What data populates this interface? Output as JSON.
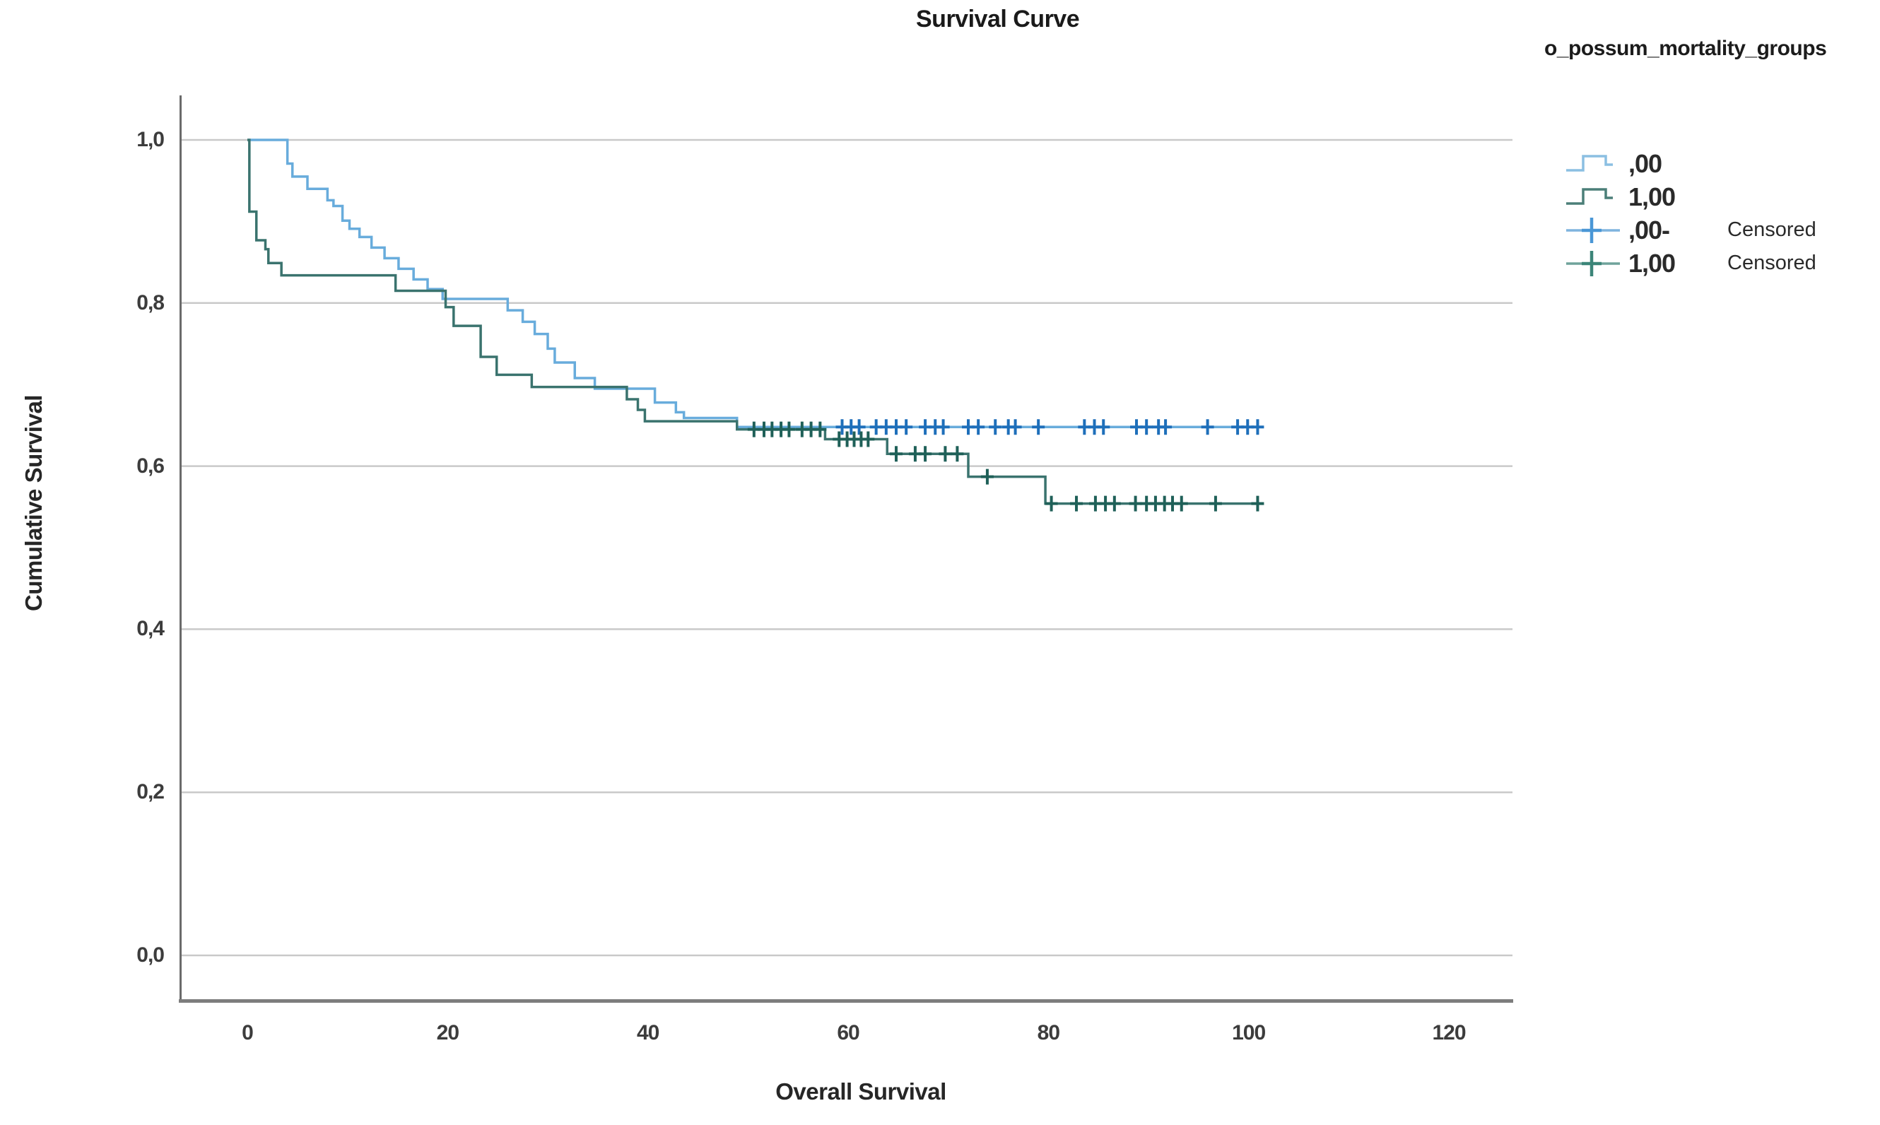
{
  "title": "Survival Curve",
  "x_axis": {
    "title": "Overall Survival",
    "ticks": [
      "0",
      "20",
      "40",
      "60",
      "80",
      "100",
      "120"
    ],
    "tick_values": [
      0,
      20,
      40,
      60,
      80,
      100,
      120
    ]
  },
  "y_axis": {
    "title": "Cumulative Survival",
    "ticks": [
      "1,0",
      "0,8",
      "0,6",
      "0,4",
      "0,2",
      "0,0"
    ],
    "tick_values": [
      1.0,
      0.8,
      0.6,
      0.4,
      0.2,
      0.0
    ]
  },
  "legend": {
    "title": "o_possum_mortality_groups",
    "entries": [
      {
        "label": ",00",
        "kind": "step-line",
        "color": "#8bbfe2"
      },
      {
        "label": "1,00",
        "kind": "step-line",
        "color": "#4b7f78"
      },
      {
        "label": ",00-",
        "censored_label": "Censored",
        "kind": "plus-line",
        "color": "#4a97d6"
      },
      {
        "label": "1,00",
        "censored_label": "Censored",
        "kind": "plus-line",
        "color": "#3c8578"
      }
    ]
  },
  "colors": {
    "group0_line": "#68acdc",
    "group0_censor": "#1e6fba",
    "group1_line": "#3a736e",
    "group1_censor": "#1f6058",
    "gridline": "#c9c9c9",
    "y_axis_line": "#6a6a6a",
    "x_axis_line": "#7d7d7d"
  },
  "chart_data": {
    "type": "line",
    "subtype": "kaplan-meier-step",
    "title": "Survival Curve",
    "xlabel": "Overall Survival",
    "ylabel": "Cumulative Survival",
    "xlim": [
      -7,
      127
    ],
    "ylim": [
      -0.06,
      1.06
    ],
    "grid": "horizontal",
    "legend_position": "top-right",
    "series": [
      {
        "name": ",00",
        "group": "0",
        "color": "#68acdc",
        "censor_color": "#1e6fba",
        "start": [
          0,
          1.0
        ],
        "end_x": 101.5,
        "steps": [
          [
            4,
            0.971
          ],
          [
            4.5,
            0.955
          ],
          [
            6,
            0.94
          ],
          [
            8,
            0.926
          ],
          [
            8.6,
            0.919
          ],
          [
            9.5,
            0.901
          ],
          [
            10.2,
            0.891
          ],
          [
            11.2,
            0.881
          ],
          [
            12.4,
            0.868
          ],
          [
            13.7,
            0.855
          ],
          [
            15.1,
            0.842
          ],
          [
            16.6,
            0.829
          ],
          [
            18,
            0.817
          ],
          [
            19.5,
            0.805
          ],
          [
            26,
            0.791
          ],
          [
            27.5,
            0.777
          ],
          [
            28.7,
            0.762
          ],
          [
            30,
            0.744
          ],
          [
            30.7,
            0.727
          ],
          [
            32.7,
            0.708
          ],
          [
            34.7,
            0.695
          ],
          [
            40.7,
            0.678
          ],
          [
            42.8,
            0.666
          ],
          [
            43.6,
            0.659
          ],
          [
            48.9,
            0.648
          ]
        ],
        "censored": [
          [
            59.4,
            0.648
          ],
          [
            60.3,
            0.648
          ],
          [
            61.1,
            0.648
          ],
          [
            62.8,
            0.648
          ],
          [
            63.8,
            0.648
          ],
          [
            64.8,
            0.648
          ],
          [
            65.8,
            0.648
          ],
          [
            67.7,
            0.648
          ],
          [
            68.7,
            0.648
          ],
          [
            69.5,
            0.648
          ],
          [
            72,
            0.648
          ],
          [
            73,
            0.648
          ],
          [
            74.7,
            0.648
          ],
          [
            76,
            0.648
          ],
          [
            76.7,
            0.648
          ],
          [
            79,
            0.648
          ],
          [
            83.6,
            0.648
          ],
          [
            84.6,
            0.648
          ],
          [
            85.5,
            0.648
          ],
          [
            88.8,
            0.648
          ],
          [
            89.8,
            0.648
          ],
          [
            91,
            0.648
          ],
          [
            91.7,
            0.648
          ],
          [
            95.9,
            0.648
          ],
          [
            98.9,
            0.648
          ],
          [
            99.9,
            0.648
          ],
          [
            100.9,
            0.648
          ]
        ]
      },
      {
        "name": "1,00",
        "group": "1",
        "color": "#3a736e",
        "censor_color": "#1f6058",
        "start": [
          0,
          1.0
        ],
        "end_x": 101.5,
        "steps": [
          [
            0.2,
            0.912
          ],
          [
            0.9,
            0.877
          ],
          [
            1.8,
            0.866
          ],
          [
            2.1,
            0.849
          ],
          [
            3.4,
            0.834
          ],
          [
            14.8,
            0.815
          ],
          [
            19.8,
            0.795
          ],
          [
            20.6,
            0.772
          ],
          [
            23.3,
            0.734
          ],
          [
            24.9,
            0.712
          ],
          [
            28.4,
            0.697
          ],
          [
            37.9,
            0.682
          ],
          [
            39,
            0.669
          ],
          [
            39.7,
            0.655
          ],
          [
            48.9,
            0.645
          ],
          [
            57.7,
            0.633
          ],
          [
            63.9,
            0.615
          ],
          [
            72,
            0.587
          ],
          [
            79.7,
            0.554
          ]
        ],
        "censored": [
          [
            50.6,
            0.645
          ],
          [
            51.6,
            0.645
          ],
          [
            52.4,
            0.645
          ],
          [
            53.3,
            0.645
          ],
          [
            54.1,
            0.645
          ],
          [
            55.4,
            0.645
          ],
          [
            56.3,
            0.645
          ],
          [
            57.2,
            0.645
          ],
          [
            59.1,
            0.633
          ],
          [
            59.9,
            0.633
          ],
          [
            60.6,
            0.633
          ],
          [
            61.3,
            0.633
          ],
          [
            62.0,
            0.633
          ],
          [
            64.8,
            0.615
          ],
          [
            66.7,
            0.615
          ],
          [
            67.7,
            0.615
          ],
          [
            69.7,
            0.615
          ],
          [
            70.9,
            0.615
          ],
          [
            73.9,
            0.587
          ],
          [
            80.3,
            0.554
          ],
          [
            82.8,
            0.554
          ],
          [
            84.7,
            0.554
          ],
          [
            85.7,
            0.554
          ],
          [
            86.6,
            0.554
          ],
          [
            88.7,
            0.554
          ],
          [
            89.8,
            0.554
          ],
          [
            90.7,
            0.554
          ],
          [
            91.6,
            0.554
          ],
          [
            92.4,
            0.554
          ],
          [
            93.3,
            0.554
          ],
          [
            96.7,
            0.554
          ],
          [
            100.9,
            0.554
          ]
        ]
      }
    ]
  }
}
